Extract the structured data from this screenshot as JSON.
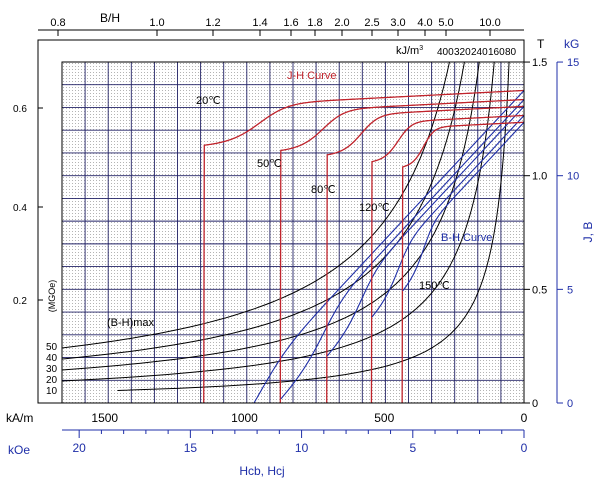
{
  "chart_data": {
    "type": "line",
    "title": "",
    "x_axis": {
      "kA_m": {
        "label": "kA/m",
        "range": [
          1650,
          0
        ],
        "ticks": [
          1500,
          1000,
          500,
          0
        ]
      },
      "kOe": {
        "label": "kOe",
        "range": [
          20.73,
          0
        ],
        "ticks": [
          20,
          15,
          10,
          5,
          0
        ]
      },
      "xlabel": "Hcb,  Hcj"
    },
    "y_axis": {
      "T": {
        "label": "T",
        "range": [
          0,
          1.5
        ],
        "ticks": [
          0,
          0.5,
          1.0,
          1.5
        ]
      },
      "kG": {
        "label": "kG",
        "range": [
          0,
          15
        ],
        "ticks": [
          0,
          5,
          10,
          15
        ]
      },
      "ylabel": "J,  B"
    },
    "top_axis": {
      "label": "B/H",
      "ticks": [
        "0.8",
        "1.0",
        "1.2",
        "1.4",
        "1.6",
        "1.8",
        "2.0",
        "2.5",
        "3.0",
        "4.0",
        "5.0",
        "10.0"
      ]
    },
    "left_axis": {
      "label": "(MGOe)",
      "ticks": [
        "0.6",
        "0.4",
        "0.2"
      ]
    },
    "energy_labels": {
      "kJ_unit": "kJ/m",
      "kJ_unit_sup": "3",
      "kJ": [
        "400",
        "320",
        "240",
        "160",
        "80"
      ],
      "MGOe": [
        "50",
        "40",
        "30",
        "20",
        "10"
      ],
      "bh_label": "(B-H)max"
    },
    "curve_labels": {
      "jh": "J-H Curve",
      "bh": "B-H Curve"
    },
    "temperatures": [
      "20℃",
      "50℃",
      "80℃",
      "120℃",
      "150℃"
    ],
    "series": [
      {
        "name": "20℃",
        "Br": 1.375,
        "Hcb": 1030,
        "Hcj": 1145,
        "mu_r": 1.05
      },
      {
        "name": "50℃",
        "Br": 1.335,
        "Hcb": 900,
        "Hcj": 870,
        "mu_r": 1.05
      },
      {
        "name": "80℃",
        "Br": 1.305,
        "Hcb": 850,
        "Hcj": 705,
        "mu_r": 1.05
      },
      {
        "name": "120℃",
        "Br": 1.265,
        "Hcb": 765,
        "Hcj": 545,
        "mu_r": 1.05
      },
      {
        "name": "150℃",
        "Br": 1.235,
        "Hcb": 660,
        "Hcj": 435,
        "mu_r": 1.05
      }
    ],
    "colors": {
      "jh": "#c0242c",
      "bh": "#1f2fa8",
      "energy": "#000000",
      "grid": "#222266",
      "axis_blue": "#1f2fa8"
    }
  }
}
